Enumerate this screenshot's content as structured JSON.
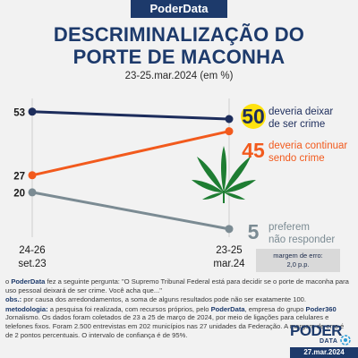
{
  "brand": "PoderData",
  "chart_data": {
    "type": "line",
    "title_line1": "DESCRIMINALIZAÇÃO DO",
    "title_line2": "PORTE DE MACONHA",
    "subtitle": "23-25.mar.2024 (em %)",
    "x_labels": [
      {
        "line1": "24-26",
        "line2": "set.23"
      },
      {
        "line1": "23-25",
        "line2": "mar.24"
      }
    ],
    "ylim": [
      0,
      60
    ],
    "grid": false,
    "series": [
      {
        "name_line1": "deveria deixar",
        "name_line2": "de ser crime",
        "values": [
          53,
          50
        ],
        "color": "#1d2d5c",
        "label_color": "#1d2d5c",
        "highlight": true
      },
      {
        "name_line1": "deveria continuar",
        "name_line2": "sendo crime",
        "values": [
          27,
          45
        ],
        "color": "#f25a1d",
        "label_color": "#f25a1d",
        "highlight": false
      },
      {
        "name_line1": "preferem",
        "name_line2": "não responder",
        "values": [
          20,
          5
        ],
        "color": "#7b8b93",
        "label_color": "#7b8b93",
        "highlight": false
      }
    ]
  },
  "margin": {
    "label": "margem de erro:",
    "value": "2,0 p.p."
  },
  "notes": {
    "intro_brand": "PoderData",
    "intro_pre": "o ",
    "intro_post": " fez a seguinte pergunta: \"O Supremo Tribunal Federal está para decidir se o porte de maconha para uso pessoal deixará de ser crime. Você acha que...\"",
    "obs_label": "obs.:",
    "obs_text": " por causa dos arredondamentos, a soma de alguns resultados pode não ser exatamente 100.",
    "method_label": "metodologia:",
    "method_a": " a pesquisa foi realizada, com recursos próprios, pelo ",
    "method_brand": "PoderData",
    "method_b": ", empresa do grupo ",
    "method_group": "Poder360",
    "method_c": " Jornalismo. Os dados foram coletados de 23 a 25 de março de 2024, por meio de ligações para celulares e telefones fixos. Foram 2.500 entrevistas em 202 municípios nas 27 unidades da Federação. A margem de erro é de 2 pontos percentuais. O intervalo de confiança é de 95%."
  },
  "logo": {
    "word": "PODER",
    "sub": "DATA"
  },
  "date": "27.mar.2024"
}
